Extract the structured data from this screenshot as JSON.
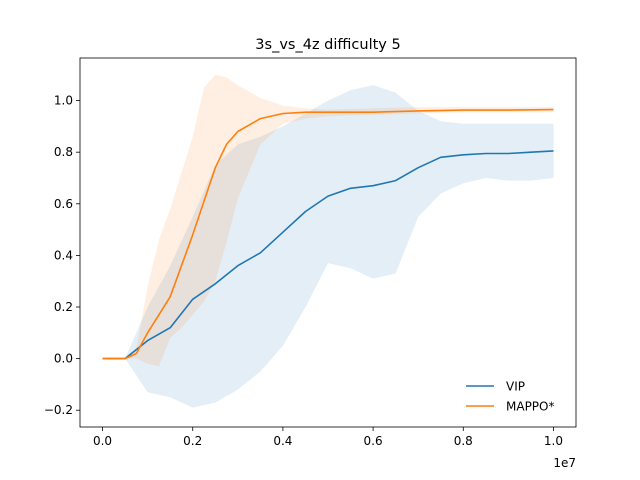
{
  "chart_data": {
    "type": "line",
    "title": "3s_vs_4z difficulty 5",
    "xlabel": "",
    "ylabel": "",
    "x_offset_label": "1e7",
    "xlim": [
      -0.05,
      1.05
    ],
    "ylim": [
      -0.265,
      1.165
    ],
    "x_ticks": [
      0.0,
      0.2,
      0.4,
      0.6,
      0.8,
      1.0
    ],
    "x_tick_labels": [
      "0.0",
      "0.2",
      "0.4",
      "0.6",
      "0.8",
      "1.0"
    ],
    "y_ticks": [
      -0.2,
      0.0,
      0.2,
      0.4,
      0.6,
      0.8,
      1.0
    ],
    "y_tick_labels": [
      "−0.2",
      "0.0",
      "0.2",
      "0.4",
      "0.6",
      "0.8",
      "1.0"
    ],
    "grid": false,
    "legend_position": "lower-right",
    "series": [
      {
        "name": "VIP",
        "color": "#1f77b4",
        "x": [
          0,
          0.05,
          0.1,
          0.15,
          0.2,
          0.25,
          0.3,
          0.35,
          0.4,
          0.45,
          0.5,
          0.55,
          0.6,
          0.65,
          0.7,
          0.75,
          0.8,
          0.85,
          0.9,
          0.95,
          1.0
        ],
        "y": [
          0,
          0,
          0.07,
          0.12,
          0.23,
          0.29,
          0.36,
          0.41,
          0.49,
          0.57,
          0.63,
          0.66,
          0.67,
          0.69,
          0.74,
          0.78,
          0.79,
          0.795,
          0.795,
          0.8,
          0.805
        ],
        "lower": [
          0,
          0,
          -0.13,
          -0.15,
          -0.19,
          -0.17,
          -0.12,
          -0.05,
          0.05,
          0.2,
          0.37,
          0.35,
          0.31,
          0.33,
          0.55,
          0.64,
          0.68,
          0.7,
          0.69,
          0.69,
          0.7
        ],
        "upper": [
          0,
          0,
          0.2,
          0.36,
          0.55,
          0.75,
          0.83,
          0.86,
          0.9,
          0.95,
          1.0,
          1.04,
          1.06,
          1.03,
          0.96,
          0.92,
          0.91,
          0.91,
          0.91,
          0.91,
          0.91
        ]
      },
      {
        "name": "MAPPO*",
        "color": "#ff7f0e",
        "x": [
          0,
          0.05,
          0.075,
          0.1,
          0.125,
          0.15,
          0.175,
          0.2,
          0.225,
          0.25,
          0.275,
          0.3,
          0.35,
          0.4,
          0.45,
          0.5,
          0.6,
          0.7,
          0.8,
          0.9,
          1.0
        ],
        "y": [
          0,
          0,
          0.02,
          0.1,
          0.17,
          0.24,
          0.36,
          0.48,
          0.61,
          0.74,
          0.83,
          0.88,
          0.93,
          0.95,
          0.955,
          0.955,
          0.955,
          0.96,
          0.963,
          0.963,
          0.965
        ],
        "lower": [
          0,
          0,
          0,
          -0.02,
          -0.03,
          0.08,
          0.12,
          0.17,
          0.22,
          0.3,
          0.45,
          0.62,
          0.83,
          0.91,
          0.93,
          0.94,
          0.945,
          0.95,
          0.955,
          0.955,
          0.955
        ],
        "upper": [
          0,
          0,
          0.04,
          0.28,
          0.46,
          0.58,
          0.72,
          0.86,
          1.05,
          1.1,
          1.09,
          1.06,
          1.01,
          0.98,
          0.97,
          0.965,
          0.97,
          0.975,
          0.975,
          0.975,
          0.975
        ]
      }
    ]
  }
}
